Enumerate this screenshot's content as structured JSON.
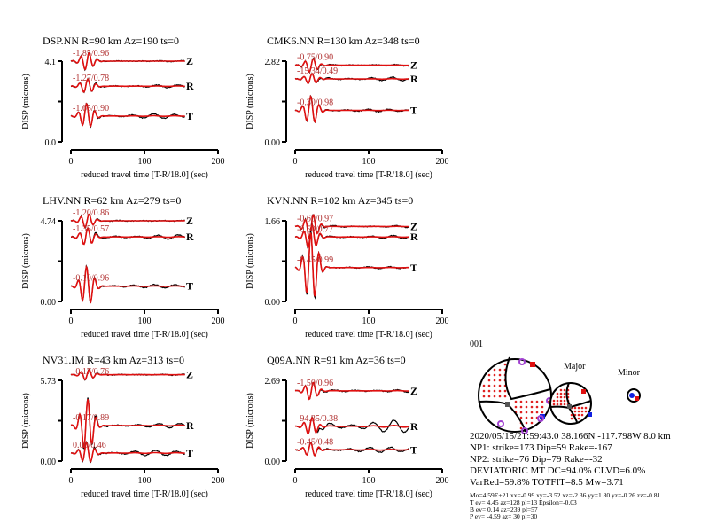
{
  "chart_data": {
    "type": "line",
    "xlabel": "reduced travel time [T-R/18.0] (sec)",
    "ylabel": "DISP (microns)",
    "xlim": [
      0,
      200
    ],
    "xticks": [
      "0",
      "100",
      "200"
    ],
    "legend": {
      "observed_color": "#000000",
      "synthetic_color": "#e01010",
      "fit_label_color": "#b03030"
    },
    "panels": [
      {
        "title": "DSP.NN R=90 km Az=190 ts=0",
        "ymax": "4.1",
        "ymin": "0.0",
        "components": [
          {
            "name": "Z",
            "fit": "-1.85/0.96"
          },
          {
            "name": "R",
            "fit": "-1.27/0.78"
          },
          {
            "name": "T",
            "fit": "-1.65/0.90"
          }
        ]
      },
      {
        "title": "CMK6.NN R=130 km Az=348 ts=0",
        "ymax": "2.82",
        "ymin": "0.00",
        "components": [
          {
            "name": "Z",
            "fit": "-0.75/0.90"
          },
          {
            "name": "R",
            "fit": "-15.34/0.49"
          },
          {
            "name": "T",
            "fit": "-0.30/0.98"
          }
        ]
      },
      {
        "title": "LHV.NN R=62 km Az=279 ts=0",
        "ymax": "4.74",
        "ymin": "0.00",
        "components": [
          {
            "name": "Z",
            "fit": "-1.20/0.86"
          },
          {
            "name": "R",
            "fit": "-1.35/0.57"
          },
          {
            "name": "T",
            "fit": "-0.10/0.96"
          }
        ]
      },
      {
        "title": "KVN.NN R=102 km Az=345 ts=0",
        "ymax": "1.66",
        "ymin": "0.00",
        "components": [
          {
            "name": "Z",
            "fit": "-0.60/0.97"
          },
          {
            "name": "R",
            "fit": "-0.50/0.77"
          },
          {
            "name": "T",
            "fit": "-0.45/0.99"
          }
        ]
      },
      {
        "title": "NV31.IM R=43 km Az=313 ts=0",
        "ymax": "5.73",
        "ymin": "0.00",
        "components": [
          {
            "name": "Z",
            "fit": "-0.17/0.76"
          },
          {
            "name": "R",
            "fit": "-0.17/0.89"
          },
          {
            "name": "T",
            "fit": "0.00/0.46"
          }
        ]
      },
      {
        "title": "Q09A.NN R=91 km Az=36 ts=0",
        "ymax": "2.69",
        "ymin": "0.00",
        "components": [
          {
            "name": "Z",
            "fit": "-1.50/0.96"
          },
          {
            "name": "R",
            "fit": "-94.35/0.38"
          },
          {
            "name": "T",
            "fit": "-0.45/0.48"
          }
        ]
      }
    ]
  },
  "mechanism": {
    "id": "001",
    "major_label": "Major",
    "minor_label": "Minor",
    "lines": [
      "2020/05/15/21:59:43.0 38.166N -117.798W 8.0 km",
      "NP1: strike=173 Dip=59 Rake=-167",
      "NP2: strike=76 Dip=79 Rake=-32",
      "DEVIATORIC MT DC=94.0% CLVD=6.0%",
      "VarRed=59.8% TOTFIT=8.5 Mw=3.71"
    ],
    "small_lines": [
      "Mo=4.59E+21 xx=-0.99 xy=-3.52 xz=-2.36 yy=1.80 yz=-0.26 zz=-0.81",
      "T ev=  4.45 az=128 pl=13 Epsilon=-0.03",
      "B ev=  0.14 az=239 pl=57",
      "P ev= -4.59 az= 30 pl=30"
    ]
  }
}
